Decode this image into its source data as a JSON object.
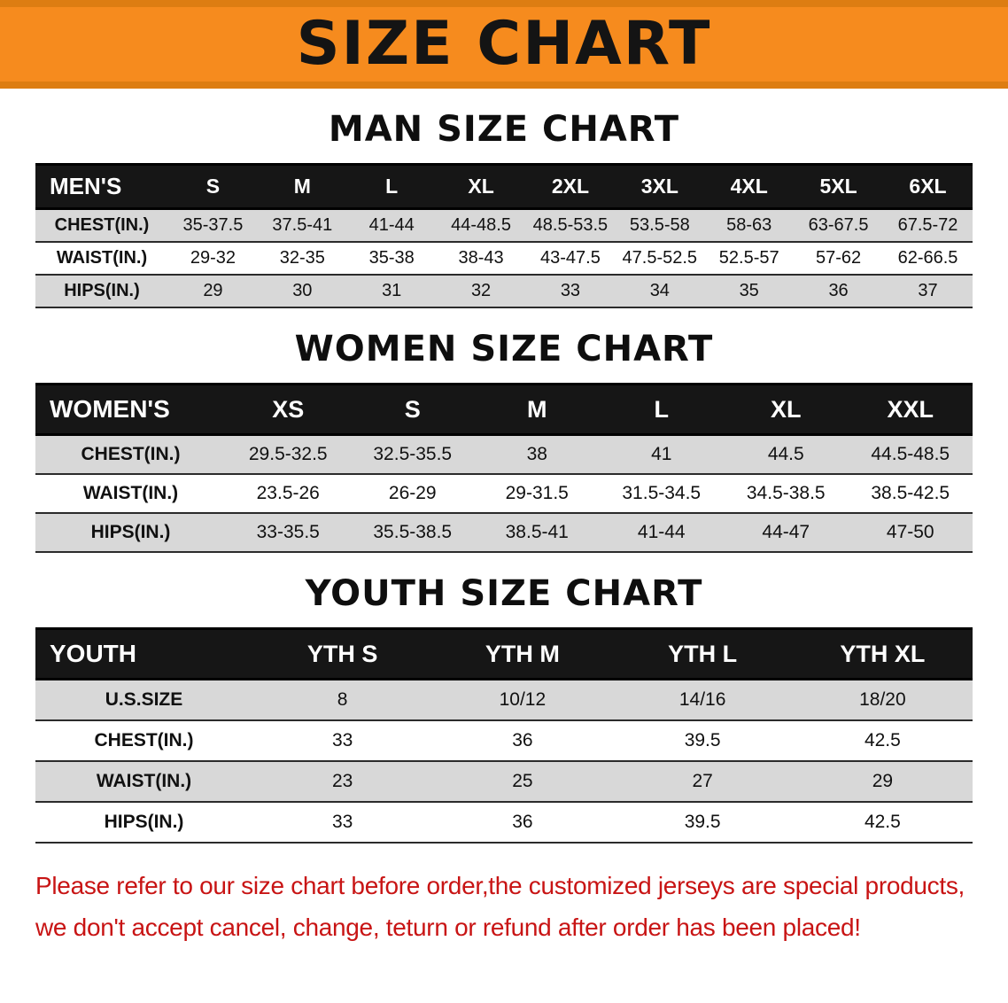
{
  "page": {
    "banner_title": "SIZE CHART"
  },
  "colors": {
    "banner_bg": "#f68b1e",
    "banner_border": "#dd7d12",
    "table_header_bg": "#161616",
    "table_header_text": "#ffffff",
    "row_alt_bg": "#d8d8d8",
    "footer_text": "#c81414"
  },
  "sections": {
    "men": {
      "heading": "MAN SIZE CHART",
      "table": {
        "header": [
          "MEN'S",
          "S",
          "M",
          "L",
          "XL",
          "2XL",
          "3XL",
          "4XL",
          "5XL",
          "6XL"
        ],
        "rows": [
          {
            "label": "CHEST(IN.)",
            "values": [
              "35-37.5",
              "37.5-41",
              "41-44",
              "44-48.5",
              "48.5-53.5",
              "53.5-58",
              "58-63",
              "63-67.5",
              "67.5-72"
            ]
          },
          {
            "label": "WAIST(IN.)",
            "values": [
              "29-32",
              "32-35",
              "35-38",
              "38-43",
              "43-47.5",
              "47.5-52.5",
              "52.5-57",
              "57-62",
              "62-66.5"
            ]
          },
          {
            "label": "HIPS(IN.)",
            "values": [
              "29",
              "30",
              "31",
              "32",
              "33",
              "34",
              "35",
              "36",
              "37"
            ]
          }
        ]
      }
    },
    "women": {
      "heading": "WOMEN SIZE CHART",
      "table": {
        "header": [
          "WOMEN'S",
          "XS",
          "S",
          "M",
          "L",
          "XL",
          "XXL"
        ],
        "rows": [
          {
            "label": "CHEST(IN.)",
            "values": [
              "29.5-32.5",
              "32.5-35.5",
              "38",
              "41",
              "44.5",
              "44.5-48.5"
            ]
          },
          {
            "label": "WAIST(IN.)",
            "values": [
              "23.5-26",
              "26-29",
              "29-31.5",
              "31.5-34.5",
              "34.5-38.5",
              "38.5-42.5"
            ]
          },
          {
            "label": "HIPS(IN.)",
            "values": [
              "33-35.5",
              "35.5-38.5",
              "38.5-41",
              "41-44",
              "44-47",
              "47-50"
            ]
          }
        ]
      }
    },
    "youth": {
      "heading": "YOUTH SIZE CHART",
      "table": {
        "header": [
          "YOUTH",
          "YTH S",
          "YTH M",
          "YTH L",
          "YTH XL"
        ],
        "rows": [
          {
            "label": "U.S.SIZE",
            "values": [
              "8",
              "10/12",
              "14/16",
              "18/20"
            ]
          },
          {
            "label": "CHEST(IN.)",
            "values": [
              "33",
              "36",
              "39.5",
              "42.5"
            ]
          },
          {
            "label": "WAIST(IN.)",
            "values": [
              "23",
              "25",
              "27",
              "29"
            ]
          },
          {
            "label": "HIPS(IN.)",
            "values": [
              "33",
              "36",
              "39.5",
              "42.5"
            ]
          }
        ]
      }
    }
  },
  "footer": {
    "line1": "Please refer to our size chart before order,the customized jerseys are special products,",
    "line2": "we don't accept cancel, change, teturn or refund after order has been placed!"
  }
}
